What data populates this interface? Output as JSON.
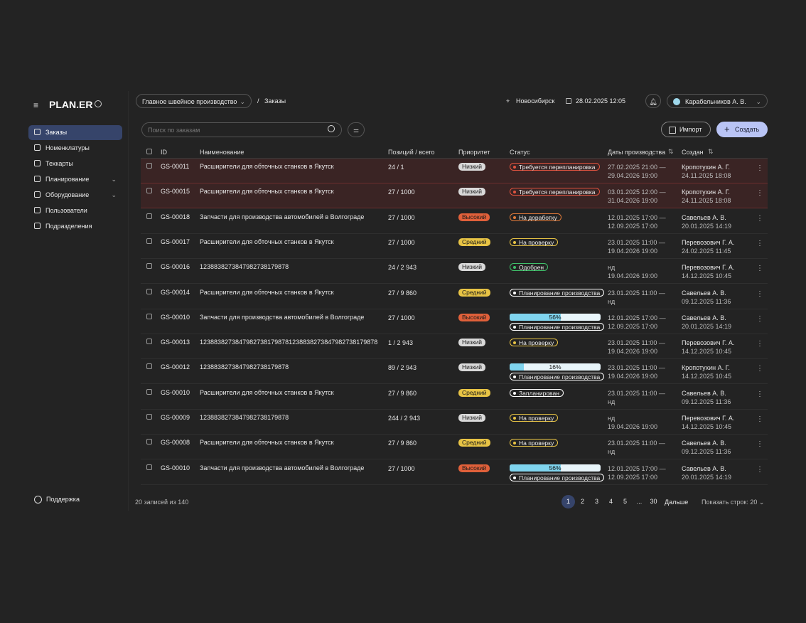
{
  "sidebar": {
    "logo": "PLAN.ER",
    "menu": [
      "Заказы",
      "Номенклатуры",
      "Техкарты",
      "Планирование",
      "Оборудование",
      "Пользователи",
      "Подразделения"
    ],
    "support": "Поддержка"
  },
  "topbar": {
    "workspace": "Главное швейное производство",
    "separator": "/",
    "page": "Заказы",
    "city": "Новосибирск",
    "datetime": "28.02.2025 12:05",
    "user": "Карабельников А. В."
  },
  "toolbar": {
    "search_placeholder": "Поиск по заказам",
    "import": "Импорт",
    "create": "Создать"
  },
  "table": {
    "columns": [
      "ID",
      "Наименование",
      "Позиций / всего",
      "Приоритет",
      "Статус",
      "Даты производства",
      "Создан"
    ],
    "rows": [
      {
        "id": "GS-00011",
        "name": "Расширители для обточных станков в Якутск",
        "positions": "24 / 1",
        "priority": "Низкий",
        "priority_color": "#d9d9d9",
        "status": "Требуется перепланировка",
        "status_color": "#e0533f",
        "alert": true,
        "dates": [
          "27.02.2025 21:00  —",
          "29.04.2026 19:00"
        ],
        "created_by": "Кропотухин А. Г.",
        "created_at": "24.11.2025  18:08"
      },
      {
        "id": "GS-00015",
        "name": "Расширители для обточных станков в Якутск",
        "positions": "27 / 1000",
        "priority": "Низкий",
        "priority_color": "#d9d9d9",
        "status": "Требуется перепланировка",
        "status_color": "#e0533f",
        "alert": true,
        "dates": [
          "03.01.2025 12:00  —",
          "31.04.2026 19:00"
        ],
        "created_by": "Кропотухин А. Г.",
        "created_at": "24.11.2025  18:08"
      },
      {
        "id": "GS-00018",
        "name": "Запчасти для производства автомобилей в Волгограде",
        "positions": "27 / 1000",
        "priority": "Высокий",
        "priority_color": "#e0603a",
        "status": "На доработку",
        "status_color": "#e07a3a",
        "dates": [
          "12.01.2025  17:00  —",
          "12.09.2025  17:00"
        ],
        "created_by": "Савельев А. В.",
        "created_at": "20.01.2025  14:19"
      },
      {
        "id": "GS-00017",
        "name": "Расширители для обточных станков в Якутск",
        "positions": "27 / 1000",
        "priority": "Средний",
        "priority_color": "#e8c445",
        "status": "На проверку",
        "status_color": "#e8c445",
        "dates": [
          "23.01.2025  11:00  —",
          "19.04.2026  19:00"
        ],
        "created_by": "Перевозович Г. А.",
        "created_at": "24.02.2025  11:45"
      },
      {
        "id": "GS-00016",
        "name": "1238838273847982738179878",
        "positions": "24 / 2 943",
        "priority": "Низкий",
        "priority_color": "#d9d9d9",
        "status": "Одобрен",
        "status_color": "#3fbf6a",
        "dates": [
          "нд",
          "19.04.2026  19:00"
        ],
        "created_by": "Перевозович Г. А.",
        "created_at": "14.12.2025  10:45"
      },
      {
        "id": "GS-00014",
        "name": "Расширители для обточных станков в Якутск",
        "positions": "27 / 9 860",
        "priority": "Средний",
        "priority_color": "#e8c445",
        "status": "Планирование производства",
        "status_color": "#ffffff",
        "dates": [
          "23.01.2025  11:00  —",
          "нд"
        ],
        "created_by": "Савельев А. В.",
        "created_at": "09.12.2025  11:36"
      },
      {
        "id": "GS-00010",
        "name": "Запчасти для производства автомобилей в Волгограде",
        "positions": "27 / 1000",
        "priority": "Высокий",
        "priority_color": "#e0603a",
        "progress": 56,
        "progress_label": "56%",
        "status": "Планирование производства",
        "status_color": "#ffffff",
        "dates": [
          "12.01.2025  17:00  —",
          "12.09.2025  17:00"
        ],
        "created_by": "Савельев А. В.",
        "created_at": "20.01.2025  14:19"
      },
      {
        "id": "GS-00013",
        "name": "1238838273847982738179878123883827384798273817​9878",
        "positions": "1 / 2 943",
        "priority": "Низкий",
        "priority_color": "#d9d9d9",
        "status": "На проверку",
        "status_color": "#e8c445",
        "dates": [
          "23.01.2025  11:00  —",
          "19.04.2026  19:00"
        ],
        "created_by": "Перевозович Г. А.",
        "created_at": "14.12.2025  10:45"
      },
      {
        "id": "GS-00012",
        "name": "1238838273847982738179878",
        "positions": "89 / 2 943",
        "priority": "Низкий",
        "priority_color": "#d9d9d9",
        "progress": 16,
        "progress_label": "16%",
        "status": "Планирование производства",
        "status_color": "#ffffff",
        "dates": [
          "23.01.2025  11:00  —",
          "19.04.2026  19:00"
        ],
        "created_by": "Кропотухин А. Г.",
        "created_at": "14.12.2025  10:45"
      },
      {
        "id": "GS-00010",
        "name": "Расширители для обточных станков в Якутск",
        "positions": "27 / 9 860",
        "priority": "Средний",
        "priority_color": "#e8c445",
        "status": "Запланирован",
        "status_color": "#ffffff",
        "dates": [
          "23.01.2025  11:00  —",
          "нд"
        ],
        "created_by": "Савельев А. В.",
        "created_at": "09.12.2025  11:36"
      },
      {
        "id": "GS-00009",
        "name": "1238838273847982738179878",
        "positions": "244 / 2 943",
        "priority": "Низкий",
        "priority_color": "#d9d9d9",
        "status": "На проверку",
        "status_color": "#e8c445",
        "dates": [
          "нд",
          "19.04.2026  19:00"
        ],
        "created_by": "Перевозович Г. А.",
        "created_at": "14.12.2025  10:45"
      },
      {
        "id": "GS-00008",
        "name": "Расширители для обточных станков в Якутск",
        "positions": "27 / 9 860",
        "priority": "Средний",
        "priority_color": "#e8c445",
        "status": "На проверку",
        "status_color": "#e8c445",
        "dates": [
          "23.01.2025  11:00  —",
          "нд"
        ],
        "created_by": "Савельев А. В.",
        "created_at": "09.12.2025  11:36"
      },
      {
        "id": "GS-00010",
        "name": "Запчасти для производства автомобилей в Волгограде",
        "positions": "27 / 1000",
        "priority": "Высокий",
        "priority_color": "#e0603a",
        "progress": 56,
        "progress_label": "56%",
        "status": "Планирование производства",
        "status_color": "#ffffff",
        "dates": [
          "12.01.2025  17:00  —",
          "12.09.2025  17:00"
        ],
        "created_by": "Савельев А. В.",
        "created_at": "20.01.2025  14:19"
      }
    ]
  },
  "footer": {
    "count": "20 записей из 140",
    "pages": [
      "1",
      "2",
      "3",
      "4",
      "5",
      "...",
      "30"
    ],
    "next": "Дальше",
    "rows_per_page": "Показать строк: 20"
  }
}
